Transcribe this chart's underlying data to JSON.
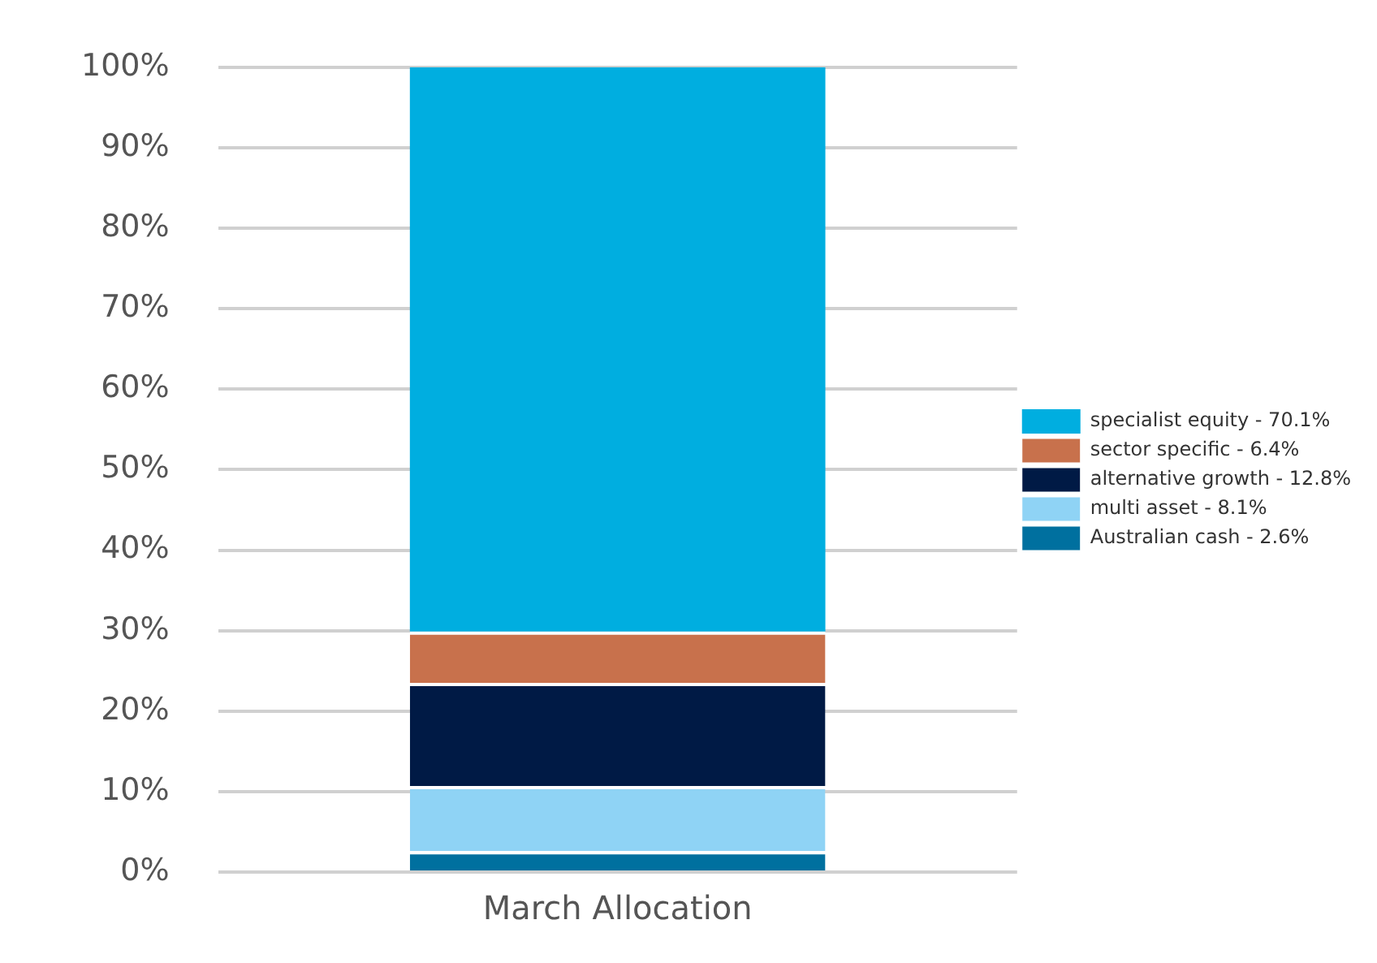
{
  "chart_data": {
    "type": "bar",
    "stacked": true,
    "categories": [
      "March Allocation"
    ],
    "series": [
      {
        "name": "Australian cash - 2.6%",
        "color": "#00709f",
        "values": [
          2.6
        ]
      },
      {
        "name": "multi asset - 8.1%",
        "color": "#8fd3f5",
        "values": [
          8.1
        ]
      },
      {
        "name": "alternative growth - 12.8%",
        "color": "#001a45",
        "values": [
          12.8
        ]
      },
      {
        "name": "sector specific - 6.4%",
        "color": "#c8714c",
        "values": [
          6.4
        ]
      },
      {
        "name": "specialist equity - 70.1%",
        "color": "#00aee0",
        "values": [
          70.1
        ]
      }
    ],
    "ylim": [
      0,
      100
    ],
    "yticks": [
      {
        "value": 0,
        "label": "0%"
      },
      {
        "value": 10,
        "label": "10%"
      },
      {
        "value": 20,
        "label": "20%"
      },
      {
        "value": 30,
        "label": "30%"
      },
      {
        "value": 40,
        "label": "40%"
      },
      {
        "value": 50,
        "label": "50%"
      },
      {
        "value": 60,
        "label": "60%"
      },
      {
        "value": 70,
        "label": "70%"
      },
      {
        "value": 80,
        "label": "80%"
      },
      {
        "value": 90,
        "label": "90%"
      },
      {
        "value": 100,
        "label": "100%"
      }
    ],
    "grid": "y",
    "legend": "right"
  }
}
